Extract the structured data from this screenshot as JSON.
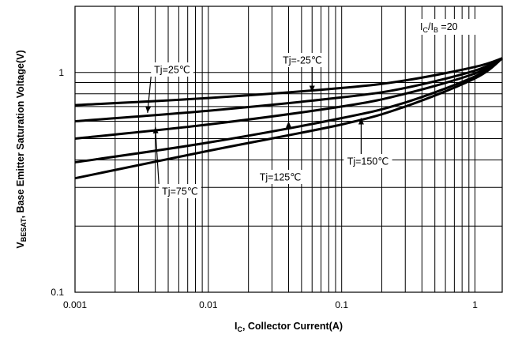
{
  "chart_data": {
    "type": "line",
    "title": "",
    "xlabel": {
      "main": "I",
      "sub": "C",
      "rest": ", Collector Current(A)"
    },
    "ylabel": {
      "main": "V",
      "sub": "BESAT",
      "rest": ", Base Emitter Saturation Voltage(V)"
    },
    "x_scale": "log",
    "y_scale": "log",
    "xlim": [
      0.001,
      1.6
    ],
    "ylim": [
      0.1,
      2.0
    ],
    "x_ticks": [
      {
        "value": 0.001,
        "label": "0.001"
      },
      {
        "value": 0.01,
        "label": "0.01"
      },
      {
        "value": 0.1,
        "label": "0.1"
      },
      {
        "value": 1,
        "label": "1"
      }
    ],
    "y_ticks": [
      {
        "value": 0.1,
        "label": "0.1"
      },
      {
        "value": 1,
        "label": "1"
      }
    ],
    "grid": true,
    "condition": {
      "main": "I",
      "sub1": "C",
      "mid": "/I",
      "sub2": "B",
      "rest": " =20"
    },
    "series": [
      {
        "name": "Tj=-25℃",
        "x": [
          0.001,
          0.01,
          0.1,
          0.3,
          1,
          1.6
        ],
        "y": [
          0.71,
          0.765,
          0.85,
          0.92,
          1.06,
          1.16
        ]
      },
      {
        "name": "Tj=25℃",
        "x": [
          0.001,
          0.01,
          0.1,
          0.3,
          1,
          1.6
        ],
        "y": [
          0.6,
          0.67,
          0.77,
          0.85,
          1.02,
          1.16
        ]
      },
      {
        "name": "Tj=75℃",
        "x": [
          0.001,
          0.01,
          0.1,
          0.3,
          1,
          1.6
        ],
        "y": [
          0.5,
          0.58,
          0.7,
          0.8,
          0.99,
          1.16
        ]
      },
      {
        "name": "Tj=125℃",
        "x": [
          0.001,
          0.01,
          0.1,
          0.3,
          1,
          1.6
        ],
        "y": [
          0.39,
          0.48,
          0.62,
          0.73,
          0.96,
          1.16
        ]
      },
      {
        "name": "Tj=150℃",
        "x": [
          0.001,
          0.01,
          0.1,
          0.3,
          1,
          1.6
        ],
        "y": [
          0.33,
          0.44,
          0.58,
          0.7,
          0.94,
          1.16
        ]
      }
    ]
  }
}
